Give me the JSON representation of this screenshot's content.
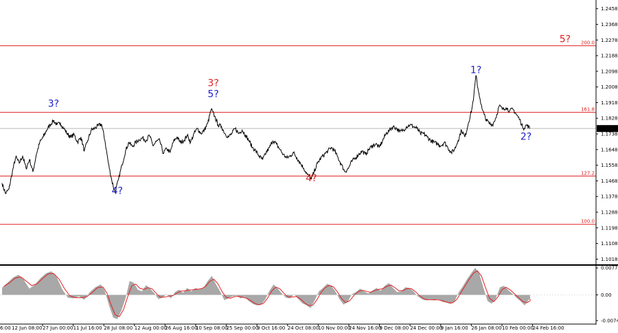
{
  "chart_data": {
    "type": "line",
    "price_axis": {
      "ticks": [
        "1.2458",
        "1.2368",
        "1.2278",
        "1.2188",
        "1.2098",
        "1.2008",
        "1.1918",
        "1.1828",
        "1.1738",
        "1.1648",
        "1.1558",
        "1.1468",
        "1.1378",
        "1.1288",
        "1.1198",
        "1.1108",
        "1.1018"
      ],
      "tick_values": [
        1.2458,
        1.2368,
        1.2278,
        1.2188,
        1.2098,
        1.2008,
        1.1918,
        1.1828,
        1.1738,
        1.1648,
        1.1558,
        1.1468,
        1.1378,
        1.1288,
        1.1198,
        1.1108,
        1.1018
      ],
      "range": [
        1.0988,
        1.2508
      ],
      "current_price": "1.1769",
      "current_value": 1.1769
    },
    "time_axis": {
      "ticks": [
        "27 Jun 00:00",
        "11 Jul 16:00",
        "28 Jul 08:00",
        "12 Aug 00:00",
        "26 Aug 16:00",
        "10 Sep 08:00",
        "25 Sep 00:00",
        "9 Oct 16:00",
        "24 Oct 08:00",
        "10 Nov 00:00",
        "24 Nov 16:00",
        "9 Dec 08:00",
        "24 Dec 00:00",
        "9 Jan 16:00",
        "26 Jan 08:00",
        "10 Feb 00:00",
        "24 Feb 16:00"
      ],
      "partial_ticks": [
        "6:00",
        "12 Jun 08:00"
      ],
      "index_range": [
        0,
        770
      ]
    },
    "fib_levels": [
      {
        "label": "200.0",
        "value": 1.2245
      },
      {
        "label": "161.8",
        "value": 1.1862
      },
      {
        "label": "127.2",
        "value": 1.1496
      },
      {
        "label": "100.0",
        "value": 1.1218
      }
    ],
    "wave_labels": [
      {
        "text": "3?",
        "color": "#1c1cd0",
        "x_index": 75,
        "price": 1.1895
      },
      {
        "text": "4?",
        "color": "#1c1cd0",
        "x_index": 168,
        "price": 1.1392
      },
      {
        "text": "3?",
        "color": "#e02020",
        "x_index": 308,
        "price": 1.2012
      },
      {
        "text": "5?",
        "color": "#1c1cd0",
        "x_index": 308,
        "price": 1.195
      },
      {
        "text": "4?",
        "color": "#e02020",
        "x_index": 451,
        "price": 1.1466
      },
      {
        "text": "1?",
        "color": "#1c1cd0",
        "x_index": 691,
        "price": 1.2088
      },
      {
        "text": "2?",
        "color": "#1c1cd0",
        "x_index": 764,
        "price": 1.1705
      },
      {
        "text": "5?",
        "color": "#e02020",
        "x_index": 821,
        "price": 1.2265
      }
    ],
    "price_path": [
      [
        0,
        1.1455
      ],
      [
        5,
        1.1395
      ],
      [
        10,
        1.142
      ],
      [
        15,
        1.152
      ],
      [
        20,
        1.1605
      ],
      [
        25,
        1.157
      ],
      [
        30,
        1.161
      ],
      [
        35,
        1.154
      ],
      [
        40,
        1.159
      ],
      [
        45,
        1.152
      ],
      [
        50,
        1.162
      ],
      [
        55,
        1.169
      ],
      [
        60,
        1.172
      ],
      [
        65,
        1.176
      ],
      [
        70,
        1.179
      ],
      [
        75,
        1.1815
      ],
      [
        80,
        1.179
      ],
      [
        85,
        1.18
      ],
      [
        90,
        1.177
      ],
      [
        95,
        1.174
      ],
      [
        100,
        1.172
      ],
      [
        105,
        1.1735
      ],
      [
        110,
        1.169
      ],
      [
        115,
        1.172
      ],
      [
        120,
        1.164
      ],
      [
        125,
        1.17
      ],
      [
        130,
        1.176
      ],
      [
        135,
        1.177
      ],
      [
        140,
        1.1785
      ],
      [
        145,
        1.1795
      ],
      [
        150,
        1.17
      ],
      [
        155,
        1.157
      ],
      [
        160,
        1.147
      ],
      [
        165,
        1.14
      ],
      [
        170,
        1.148
      ],
      [
        175,
        1.156
      ],
      [
        180,
        1.164
      ],
      [
        185,
        1.169
      ],
      [
        190,
        1.1665
      ],
      [
        195,
        1.169
      ],
      [
        200,
        1.1705
      ],
      [
        205,
        1.1715
      ],
      [
        210,
        1.17
      ],
      [
        215,
        1.173
      ],
      [
        220,
        1.167
      ],
      [
        225,
        1.1695
      ],
      [
        230,
        1.17
      ],
      [
        235,
        1.1625
      ],
      [
        240,
        1.1655
      ],
      [
        245,
        1.163
      ],
      [
        250,
        1.1695
      ],
      [
        255,
        1.172
      ],
      [
        260,
        1.169
      ],
      [
        265,
        1.17
      ],
      [
        270,
        1.173
      ],
      [
        275,
        1.169
      ],
      [
        280,
        1.174
      ],
      [
        285,
        1.177
      ],
      [
        290,
        1.174
      ],
      [
        295,
        1.176
      ],
      [
        300,
        1.18
      ],
      [
        305,
        1.188
      ],
      [
        310,
        1.184
      ],
      [
        315,
        1.179
      ],
      [
        320,
        1.178
      ],
      [
        325,
        1.174
      ],
      [
        330,
        1.172
      ],
      [
        335,
        1.174
      ],
      [
        340,
        1.177
      ],
      [
        345,
        1.174
      ],
      [
        350,
        1.176
      ],
      [
        355,
        1.173
      ],
      [
        360,
        1.17
      ],
      [
        365,
        1.166
      ],
      [
        370,
        1.164
      ],
      [
        375,
        1.161
      ],
      [
        380,
        1.159
      ],
      [
        385,
        1.163
      ],
      [
        390,
        1.166
      ],
      [
        395,
        1.17
      ],
      [
        400,
        1.168
      ],
      [
        405,
        1.165
      ],
      [
        410,
        1.162
      ],
      [
        415,
        1.16
      ],
      [
        420,
        1.161
      ],
      [
        425,
        1.163
      ],
      [
        430,
        1.16
      ],
      [
        435,
        1.157
      ],
      [
        440,
        1.154
      ],
      [
        445,
        1.1505
      ],
      [
        451,
        1.148
      ],
      [
        455,
        1.152
      ],
      [
        460,
        1.157
      ],
      [
        465,
        1.16
      ],
      [
        470,
        1.162
      ],
      [
        475,
        1.164
      ],
      [
        480,
        1.166
      ],
      [
        485,
        1.164
      ],
      [
        490,
        1.16
      ],
      [
        495,
        1.156
      ],
      [
        500,
        1.152
      ],
      [
        505,
        1.154
      ],
      [
        510,
        1.158
      ],
      [
        515,
        1.16
      ],
      [
        520,
        1.162
      ],
      [
        525,
        1.164
      ],
      [
        530,
        1.162
      ],
      [
        535,
        1.165
      ],
      [
        540,
        1.167
      ],
      [
        545,
        1.168
      ],
      [
        550,
        1.166
      ],
      [
        555,
        1.17
      ],
      [
        560,
        1.174
      ],
      [
        565,
        1.176
      ],
      [
        570,
        1.178
      ],
      [
        575,
        1.177
      ],
      [
        580,
        1.175
      ],
      [
        585,
        1.176
      ],
      [
        590,
        1.178
      ],
      [
        595,
        1.179
      ],
      [
        600,
        1.178
      ],
      [
        605,
        1.177
      ],
      [
        610,
        1.174
      ],
      [
        615,
        1.174
      ],
      [
        620,
        1.172
      ],
      [
        625,
        1.17
      ],
      [
        630,
        1.169
      ],
      [
        635,
        1.168
      ],
      [
        640,
        1.167
      ],
      [
        645,
        1.169
      ],
      [
        650,
        1.166
      ],
      [
        655,
        1.163
      ],
      [
        660,
        1.165
      ],
      [
        665,
        1.17
      ],
      [
        670,
        1.176
      ],
      [
        675,
        1.172
      ],
      [
        680,
        1.18
      ],
      [
        685,
        1.188
      ],
      [
        688,
        1.196
      ],
      [
        691,
        1.2075
      ],
      [
        694,
        1.2
      ],
      [
        697,
        1.194
      ],
      [
        700,
        1.188
      ],
      [
        703,
        1.185
      ],
      [
        706,
        1.182
      ],
      [
        710,
        1.18
      ],
      [
        715,
        1.179
      ],
      [
        720,
        1.183
      ],
      [
        725,
        1.19
      ],
      [
        730,
        1.188
      ],
      [
        735,
        1.189
      ],
      [
        740,
        1.187
      ],
      [
        745,
        1.188
      ],
      [
        750,
        1.185
      ],
      [
        755,
        1.182
      ],
      [
        760,
        1.177
      ],
      [
        765,
        1.179
      ],
      [
        770,
        1.1769
      ]
    ],
    "oscillator": {
      "ticks": [
        "0.00776",
        "0.00",
        "-0.0074"
      ],
      "tick_values": [
        0.00776,
        0.0,
        -0.0074
      ],
      "range": [
        -0.008,
        0.0082
      ],
      "values": [
        [
          0,
          0.0021
        ],
        [
          8,
          0.0035
        ],
        [
          16,
          0.005
        ],
        [
          24,
          0.0058
        ],
        [
          32,
          0.0042
        ],
        [
          40,
          0.0018
        ],
        [
          48,
          0.003
        ],
        [
          56,
          0.0048
        ],
        [
          64,
          0.0062
        ],
        [
          72,
          0.0068
        ],
        [
          80,
          0.005
        ],
        [
          88,
          0.0015
        ],
        [
          96,
          -0.0008
        ],
        [
          104,
          -0.001
        ],
        [
          112,
          -0.0004
        ],
        [
          120,
          -0.0014
        ],
        [
          128,
          0.0008
        ],
        [
          136,
          0.0022
        ],
        [
          144,
          0.003
        ],
        [
          150,
          0.001
        ],
        [
          156,
          -0.003
        ],
        [
          162,
          -0.0065
        ],
        [
          168,
          -0.007
        ],
        [
          174,
          -0.0045
        ],
        [
          180,
          -0.001
        ],
        [
          186,
          0.004
        ],
        [
          192,
          0.0035
        ],
        [
          198,
          0.0015
        ],
        [
          204,
          0.001
        ],
        [
          210,
          0.0028
        ],
        [
          216,
          0.0018
        ],
        [
          222,
          0.0005
        ],
        [
          228,
          -0.0012
        ],
        [
          234,
          -0.0008
        ],
        [
          240,
          0.0002
        ],
        [
          246,
          -0.001
        ],
        [
          252,
          0.0008
        ],
        [
          258,
          0.0015
        ],
        [
          264,
          0.0006
        ],
        [
          270,
          0.002
        ],
        [
          276,
          0.001
        ],
        [
          282,
          0.002
        ],
        [
          288,
          0.0015
        ],
        [
          294,
          0.0022
        ],
        [
          300,
          0.004
        ],
        [
          306,
          0.0055
        ],
        [
          312,
          0.003
        ],
        [
          318,
          0.001
        ],
        [
          324,
          -0.0015
        ],
        [
          330,
          -0.001
        ],
        [
          336,
          -0.0004
        ],
        [
          342,
          -0.0002
        ],
        [
          348,
          -0.001
        ],
        [
          354,
          -0.0006
        ],
        [
          360,
          -0.0018
        ],
        [
          366,
          -0.0026
        ],
        [
          372,
          -0.003
        ],
        [
          378,
          -0.0028
        ],
        [
          384,
          -0.0012
        ],
        [
          390,
          0.0012
        ],
        [
          396,
          0.003
        ],
        [
          402,
          0.0018
        ],
        [
          408,
          0.0004
        ],
        [
          414,
          -0.0008
        ],
        [
          420,
          -0.001
        ],
        [
          426,
          0.0002
        ],
        [
          432,
          -0.0012
        ],
        [
          438,
          -0.0024
        ],
        [
          444,
          -0.003
        ],
        [
          450,
          -0.0038
        ],
        [
          456,
          -0.0015
        ],
        [
          462,
          0.001
        ],
        [
          468,
          0.002
        ],
        [
          474,
          0.0032
        ],
        [
          480,
          0.0026
        ],
        [
          486,
          0.001
        ],
        [
          492,
          -0.0012
        ],
        [
          498,
          -0.0028
        ],
        [
          504,
          -0.002
        ],
        [
          510,
          0.0002
        ],
        [
          516,
          0.0008
        ],
        [
          522,
          0.0018
        ],
        [
          528,
          0.001
        ],
        [
          534,
          0.0004
        ],
        [
          540,
          0.0012
        ],
        [
          546,
          0.002
        ],
        [
          552,
          0.0012
        ],
        [
          558,
          0.0026
        ],
        [
          564,
          0.0034
        ],
        [
          570,
          0.002
        ],
        [
          576,
          0.0008
        ],
        [
          582,
          0.001
        ],
        [
          588,
          0.0022
        ],
        [
          594,
          0.002
        ],
        [
          600,
          0.001
        ],
        [
          606,
          -0.0004
        ],
        [
          612,
          -0.0012
        ],
        [
          618,
          -0.0016
        ],
        [
          624,
          -0.0012
        ],
        [
          630,
          -0.0016
        ],
        [
          636,
          -0.0012
        ],
        [
          642,
          -0.002
        ],
        [
          648,
          -0.0022
        ],
        [
          654,
          -0.0026
        ],
        [
          660,
          -0.0018
        ],
        [
          666,
          0.0008
        ],
        [
          672,
          0.0025
        ],
        [
          678,
          0.0045
        ],
        [
          684,
          0.0062
        ],
        [
          690,
          0.0078
        ],
        [
          696,
          0.006
        ],
        [
          702,
          0.002
        ],
        [
          708,
          -0.0018
        ],
        [
          714,
          -0.0025
        ],
        [
          720,
          -0.001
        ],
        [
          726,
          0.0022
        ],
        [
          732,
          0.0026
        ],
        [
          738,
          0.0014
        ],
        [
          744,
          0.0004
        ],
        [
          750,
          -0.0008
        ],
        [
          756,
          -0.0018
        ],
        [
          762,
          -0.003
        ],
        [
          768,
          -0.0014
        ],
        [
          770,
          -0.001
        ]
      ]
    },
    "colors": {
      "background": "#ffffff",
      "price_line": "#000000",
      "fib_line": "#e02020",
      "wave_red": "#e02020",
      "wave_blue": "#1c1cd0",
      "oscillator_fill": "#a8a8a8",
      "signal_line": "#e02020",
      "current_price_box": "#000000"
    }
  }
}
